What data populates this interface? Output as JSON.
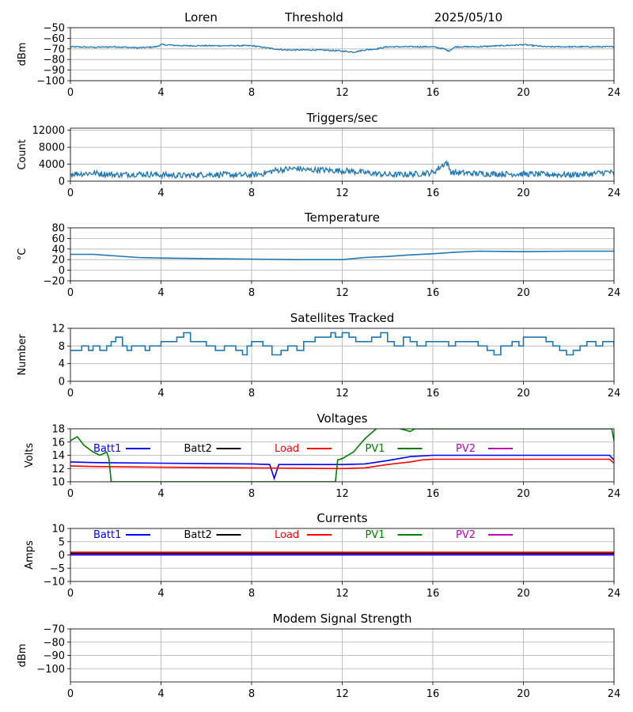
{
  "header": {
    "station": "Loren",
    "mode": "Threshold",
    "date": "2025/05/10"
  },
  "colors": {
    "default_line": "#1f77b4",
    "Batt1": "#0000ff",
    "Batt2": "#000000",
    "Load": "#ff0000",
    "PV1": "#008000",
    "PV2": "#bf00bf",
    "grid": "#b0b0b0"
  },
  "chart_data": [
    {
      "type": "line",
      "title": "",
      "ylabel": "dBm",
      "xlim": [
        0,
        24
      ],
      "ylim": [
        -100,
        -50
      ],
      "xticks": [
        "0",
        "4",
        "8",
        "12",
        "16",
        "20",
        "24"
      ],
      "yticks": [
        "−50",
        "−60",
        "−70",
        "−80",
        "−90",
        "−100"
      ],
      "grid": true,
      "series": [
        {
          "color": "default_line",
          "noise": 0.6,
          "x": [
            0,
            1,
            2,
            3,
            3.8,
            4,
            5,
            6,
            7,
            8,
            9,
            9.5,
            10,
            11,
            12,
            12.5,
            13,
            13.5,
            14,
            15,
            16,
            16.5,
            16.7,
            17,
            18,
            19,
            20,
            21,
            22,
            23,
            24
          ],
          "y": [
            -68,
            -68.5,
            -68,
            -69,
            -68,
            -66,
            -67,
            -67,
            -67,
            -67,
            -70,
            -71,
            -71,
            -71,
            -72,
            -73,
            -71,
            -70,
            -68,
            -68,
            -68,
            -70,
            -72,
            -68,
            -68,
            -67,
            -66,
            -68,
            -68,
            -68,
            -68
          ]
        }
      ]
    },
    {
      "type": "line",
      "title": "Triggers/sec",
      "ylabel": "Count",
      "xlim": [
        0,
        24
      ],
      "ylim": [
        0,
        12500
      ],
      "xticks": [
        "0",
        "4",
        "8",
        "12",
        "16",
        "20",
        "24"
      ],
      "yticks": [
        "0",
        "4000",
        "8000",
        "12000"
      ],
      "grid": true,
      "series": [
        {
          "color": "default_line",
          "noise": 700,
          "x": [
            0,
            1,
            2,
            3,
            4,
            5,
            6,
            7,
            8,
            8.5,
            9,
            9.5,
            10,
            10.5,
            11,
            11.5,
            12,
            12.5,
            13,
            14,
            15,
            16,
            16.6,
            16.8,
            17,
            18,
            19,
            20,
            21,
            22,
            23,
            23.8,
            24
          ],
          "y": [
            1700,
            1900,
            1500,
            1700,
            1500,
            1300,
            1600,
            1500,
            1400,
            1800,
            2500,
            2800,
            3000,
            2600,
            2700,
            2500,
            2500,
            2300,
            2000,
            1500,
            1600,
            2000,
            4500,
            2200,
            2000,
            1800,
            1700,
            1700,
            1600,
            1500,
            1700,
            2200,
            1600
          ]
        }
      ]
    },
    {
      "type": "line",
      "title": "Temperature",
      "ylabel": "°C",
      "xlim": [
        0,
        24
      ],
      "ylim": [
        -20,
        80
      ],
      "xticks": [
        "0",
        "4",
        "8",
        "12",
        "16",
        "20",
        "24"
      ],
      "yticks": [
        "−20",
        "0",
        "20",
        "40",
        "60",
        "80"
      ],
      "grid": true,
      "series": [
        {
          "color": "default_line",
          "noise": 0,
          "x": [
            0,
            1,
            2,
            3,
            4,
            6,
            8,
            10,
            12,
            13,
            14,
            15,
            16,
            17,
            18,
            20,
            22,
            24
          ],
          "y": [
            30,
            30,
            27,
            24,
            23,
            22,
            21,
            20,
            20,
            24,
            26,
            29,
            31,
            34,
            36,
            35,
            36,
            36
          ]
        }
      ]
    },
    {
      "type": "line",
      "title": "Satellites Tracked",
      "ylabel": "Number",
      "xlim": [
        0,
        24
      ],
      "ylim": [
        0,
        12
      ],
      "xticks": [
        "0",
        "4",
        "8",
        "12",
        "16",
        "20",
        "24"
      ],
      "yticks": [
        "0",
        "4",
        "8",
        "12"
      ],
      "grid": true,
      "series": [
        {
          "color": "default_line",
          "noise": 0,
          "step": true,
          "x": [
            0,
            0.5,
            0.8,
            1,
            1.3,
            1.6,
            1.8,
            2,
            2.3,
            2.5,
            2.7,
            3,
            3.3,
            3.5,
            3.8,
            4,
            4.7,
            5,
            5.3,
            5.6,
            6,
            6.4,
            6.8,
            7,
            7.3,
            7.6,
            7.8,
            8,
            8.5,
            8.9,
            9.3,
            9.6,
            10,
            10.3,
            10.8,
            11,
            11.5,
            11.7,
            12,
            12.3,
            12.6,
            13,
            13.3,
            13.7,
            14,
            14.3,
            14.7,
            15,
            15.3,
            15.7,
            16,
            16.3,
            16.7,
            17,
            17.5,
            18,
            18.4,
            18.7,
            19,
            19.5,
            19.8,
            20,
            20.5,
            21,
            21.3,
            21.6,
            21.9,
            22.2,
            22.5,
            22.8,
            23.2,
            23.5,
            24
          ],
          "y": [
            7,
            8,
            7,
            8,
            7,
            8,
            9,
            10,
            8,
            7,
            8,
            8,
            7,
            8,
            8,
            9,
            10,
            11,
            9,
            9,
            8,
            7,
            8,
            8,
            7,
            6,
            8,
            9,
            8,
            6,
            7,
            8,
            7,
            9,
            10,
            10,
            11,
            10,
            11,
            10,
            9,
            9,
            10,
            11,
            9,
            8,
            10,
            9,
            8,
            9,
            9,
            9,
            8,
            9,
            9,
            8,
            7,
            6,
            8,
            9,
            8,
            10,
            10,
            9,
            8,
            7,
            6,
            7,
            8,
            9,
            8,
            9,
            8
          ]
        }
      ]
    },
    {
      "type": "line",
      "title": "Voltages",
      "ylabel": "Volts",
      "xlim": [
        0,
        24
      ],
      "ylim": [
        10,
        18
      ],
      "xticks": [
        "0",
        "4",
        "8",
        "12",
        "16",
        "20",
        "24"
      ],
      "yticks": [
        "10",
        "12",
        "14",
        "16",
        "18"
      ],
      "grid": true,
      "legend": [
        "Batt1",
        "Batt2",
        "Load",
        "PV1",
        "PV2"
      ],
      "series": [
        {
          "name": "Batt1",
          "color": "Batt1",
          "noise": 0,
          "x": [
            0,
            1,
            4,
            8,
            8.8,
            9,
            9.2,
            10,
            12,
            13,
            14,
            15,
            16,
            20,
            23.8,
            24
          ],
          "y": [
            13.0,
            12.9,
            12.8,
            12.7,
            12.6,
            10.5,
            12.6,
            12.6,
            12.6,
            12.7,
            13.2,
            13.8,
            14.0,
            14.0,
            14.0,
            13.3
          ]
        },
        {
          "name": "Load",
          "color": "Load",
          "noise": 0,
          "x": [
            0,
            1,
            4,
            8,
            12,
            13,
            14,
            15,
            15.5,
            16,
            20,
            23.8,
            24
          ],
          "y": [
            12.4,
            12.3,
            12.2,
            12.1,
            12.0,
            12.1,
            12.6,
            13.0,
            13.3,
            13.4,
            13.4,
            13.4,
            12.8
          ]
        },
        {
          "name": "PV1",
          "color": "PV1",
          "noise": 0,
          "x": [
            0,
            0.3,
            0.6,
            1,
            1.3,
            1.5,
            1.6,
            1.7,
            1.8,
            11.7,
            11.8,
            12,
            12.5,
            13,
            13.5,
            14,
            14.8,
            15,
            15.2,
            23.9,
            24
          ],
          "y": [
            16.2,
            16.8,
            15.5,
            14.5,
            14.0,
            14.3,
            14.5,
            13.5,
            10.0,
            10.0,
            13.3,
            13.5,
            14.5,
            16.5,
            18.0,
            18.5,
            17.8,
            17.6,
            18.0,
            18.0,
            16.2
          ]
        }
      ]
    },
    {
      "type": "line",
      "title": "Currents",
      "ylabel": "Amps",
      "xlim": [
        0,
        24
      ],
      "ylim": [
        -10,
        10
      ],
      "xticks": [
        "0",
        "4",
        "8",
        "12",
        "16",
        "20",
        "24"
      ],
      "yticks": [
        "−10",
        "−5",
        "0",
        "5",
        "10"
      ],
      "grid": true,
      "legend": [
        "Batt1",
        "Batt2",
        "Load",
        "PV1",
        "PV2"
      ],
      "series": [
        {
          "name": "Load",
          "color": "Load",
          "noise": 0,
          "x": [
            0,
            24
          ],
          "y": [
            1.0,
            1.0
          ]
        },
        {
          "name": "Batt2",
          "color": "Batt2",
          "noise": 0,
          "x": [
            0,
            24
          ],
          "y": [
            0.6,
            0.6
          ]
        },
        {
          "name": "PV2",
          "color": "PV2",
          "noise": 0,
          "x": [
            0,
            24
          ],
          "y": [
            0.2,
            0.2
          ]
        },
        {
          "name": "Batt1",
          "color": "Batt1",
          "noise": 0,
          "x": [
            0,
            24
          ],
          "y": [
            0.0,
            0.0
          ]
        }
      ]
    },
    {
      "type": "line",
      "title": "Modem Signal Strength",
      "ylabel": "dBm",
      "xlim": [
        0,
        24
      ],
      "ylim": [
        -110,
        -70
      ],
      "xticks": [
        "0",
        "4",
        "8",
        "12",
        "16",
        "20",
        "24"
      ],
      "yticks": [
        "−70",
        "−80",
        "−90",
        "−100"
      ],
      "ytick_values": [
        -70,
        -80,
        -90,
        -100
      ],
      "grid": true,
      "series": []
    }
  ]
}
